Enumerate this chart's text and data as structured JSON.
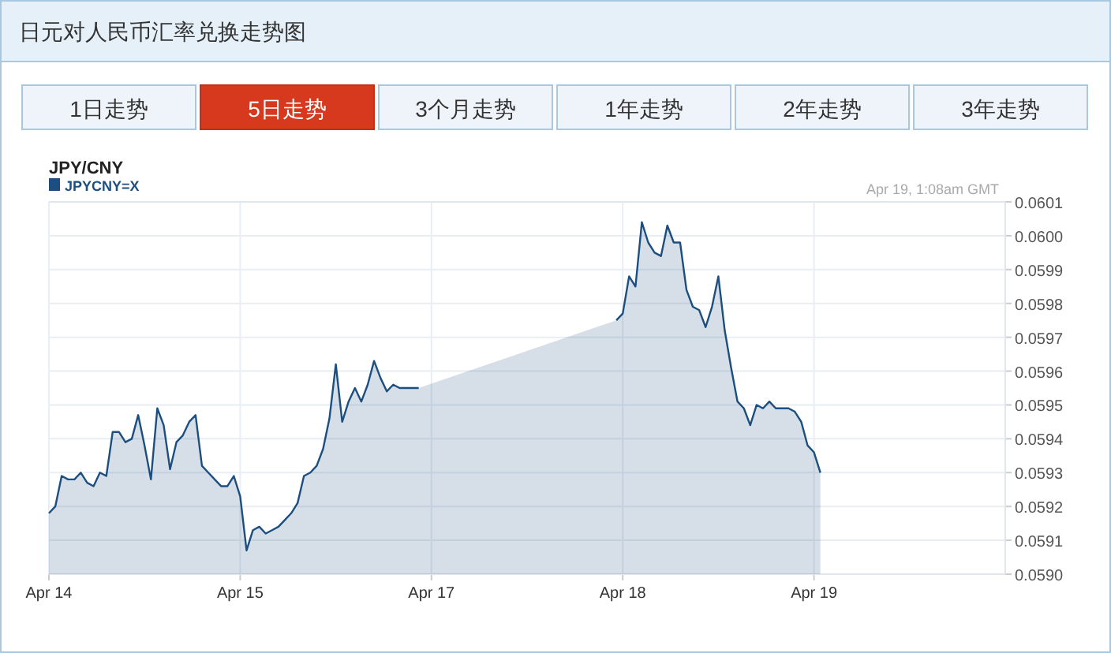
{
  "chart_data": {
    "type": "area",
    "title": "日元对人民币汇率兑换走势图",
    "subtitle": "JPY/CNY",
    "annotations": [
      "1日走势",
      "5日走势",
      "3个月走势",
      "1年走势",
      "2年走势",
      "3年走势",
      "Apr 19, 1:08am GMT"
    ],
    "categories": [
      "Apr 14",
      null,
      null,
      null,
      null,
      null,
      null,
      null,
      null,
      null,
      null,
      null,
      null,
      null,
      null,
      null,
      null,
      null,
      null,
      null,
      null,
      null,
      null,
      null,
      null,
      null,
      null,
      null,
      null,
      null,
      "Apr 15",
      null,
      null,
      null,
      null,
      null,
      null,
      null,
      null,
      null,
      null,
      null,
      null,
      null,
      null,
      null,
      null,
      null,
      null,
      null,
      null,
      null,
      null,
      null,
      null,
      null,
      null,
      null,
      null,
      null,
      "Apr 17",
      null,
      null,
      null,
      null,
      null,
      null,
      null,
      null,
      null,
      null,
      null,
      null,
      null,
      null,
      null,
      null,
      null,
      null,
      null,
      null,
      null,
      null,
      null,
      null,
      null,
      null,
      null,
      null,
      null,
      "Apr 18",
      null,
      null,
      null,
      null,
      null,
      null,
      null,
      null,
      null,
      null,
      null,
      null,
      null,
      null,
      null,
      null,
      null,
      null,
      null,
      null,
      null,
      null,
      null,
      null,
      null,
      null,
      null,
      null,
      null,
      "Apr 19",
      null,
      null,
      null,
      null,
      null,
      null,
      null,
      null,
      null,
      null,
      null,
      null,
      null,
      null,
      null,
      null,
      null,
      null,
      null,
      null,
      null,
      null,
      null,
      null,
      null,
      null,
      null,
      null,
      null
    ],
    "ylim": [
      0.059,
      0.0601
    ],
    "yticks": [
      {
        "value": 0.059,
        "label": "0.0590"
      },
      0.0591,
      0.0592,
      0.0593,
      0.0594,
      0.0595,
      0.0596,
      0.0597,
      0.0598,
      0.0599,
      {
        "value": 0.06,
        "label": "0.0600"
      },
      0.0601
    ],
    "grid": true,
    "legend": "top left",
    "marker": "none",
    "line_style": "solid",
    "series": [
      {
        "name": "JPYCNY=X",
        "color": "#1c4f80",
        "values": [
          0.05918,
          0.0592,
          0.05929,
          0.05928,
          0.05928,
          0.0593,
          0.05927,
          0.05926,
          0.0593,
          0.05929,
          0.05942,
          0.05942,
          0.05939,
          0.0594,
          0.05947,
          0.05938,
          0.05928,
          0.05949,
          0.05944,
          0.05931,
          0.05939,
          0.05941,
          0.05945,
          0.05947,
          0.05932,
          0.0593,
          0.05928,
          0.05926,
          0.05926,
          0.05929,
          0.05923,
          0.05907,
          0.05913,
          0.05914,
          0.05912,
          0.05913,
          0.05914,
          0.05916,
          0.05918,
          0.05921,
          0.05929,
          0.0593,
          0.05932,
          0.05937,
          0.05946,
          0.05962,
          0.05945,
          0.05951,
          0.05955,
          0.05951,
          0.05956,
          0.05963,
          0.05958,
          0.05954,
          0.05956,
          0.05955,
          0.05955,
          0.05955,
          0.05955,
          null,
          null,
          null,
          null,
          null,
          null,
          null,
          null,
          null,
          null,
          null,
          null,
          null,
          null,
          null,
          null,
          null,
          null,
          null,
          null,
          null,
          null,
          null,
          null,
          null,
          null,
          null,
          null,
          null,
          null,
          0.05975,
          0.05977,
          0.05988,
          0.05985,
          0.06004,
          0.05998,
          0.05995,
          0.05994,
          0.06003,
          0.05998,
          0.05998,
          0.05984,
          0.05979,
          0.05978,
          0.05973,
          0.05979,
          0.05988,
          0.05972,
          0.05961,
          0.05951,
          0.05949,
          0.05944,
          0.0595,
          0.05949,
          0.05951,
          0.05949,
          0.05949,
          0.05949,
          0.05948,
          0.05945,
          0.05938,
          0.05936,
          0.0593,
          null,
          null,
          null,
          null,
          null,
          null,
          null,
          null,
          null,
          null,
          null,
          null,
          null,
          null,
          null,
          null,
          null,
          null,
          null,
          null,
          null,
          null,
          null,
          null,
          null,
          null,
          null,
          null
        ]
      }
    ]
  }
}
